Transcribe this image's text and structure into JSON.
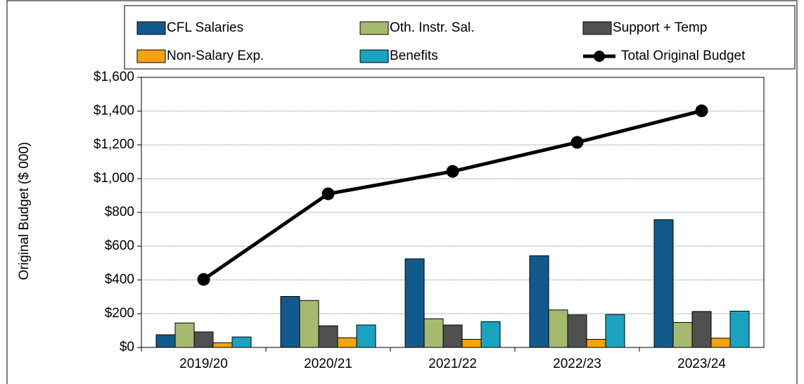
{
  "chart_data": {
    "type": "bar",
    "y_label": "Original Budget ($ 000)",
    "categories": [
      "2019/20",
      "2020/21",
      "2021/22",
      "2022/23",
      "2023/24"
    ],
    "series": [
      {
        "name": "CFL Salaries",
        "color": "#135a8c",
        "values": [
          75,
          302,
          525,
          543,
          757
        ]
      },
      {
        "name": "Oth. Instr. Sal.",
        "color": "#a5ba6e",
        "values": [
          145,
          278,
          170,
          222,
          148
        ]
      },
      {
        "name": "Support + Temp",
        "color": "#505050",
        "values": [
          92,
          128,
          133,
          193,
          213
        ]
      },
      {
        "name": "Non-Salary Exp.",
        "color": "#f7a20f",
        "values": [
          28,
          57,
          48,
          48,
          55
        ]
      },
      {
        "name": "Benefits",
        "color": "#1aa3c0",
        "values": [
          62,
          133,
          153,
          195,
          215
        ]
      },
      {
        "name": "Total Original Budget",
        "color": "#000000",
        "type": "line",
        "values": [
          403,
          910,
          1043,
          1215,
          1402
        ]
      }
    ],
    "ylim": [
      0,
      1600
    ],
    "yticks": [
      {
        "value": 0,
        "label": "$0"
      },
      {
        "value": 200,
        "label": "$200"
      },
      {
        "value": 400,
        "label": "$400"
      },
      {
        "value": 600,
        "label": "$600"
      },
      {
        "value": 800,
        "label": "$800"
      },
      {
        "value": 1000,
        "label": "$1,000"
      },
      {
        "value": 1200,
        "label": "$1,200"
      },
      {
        "value": 1400,
        "label": "$1,400"
      },
      {
        "value": 1600,
        "label": "$1,600"
      }
    ],
    "grid": true
  }
}
